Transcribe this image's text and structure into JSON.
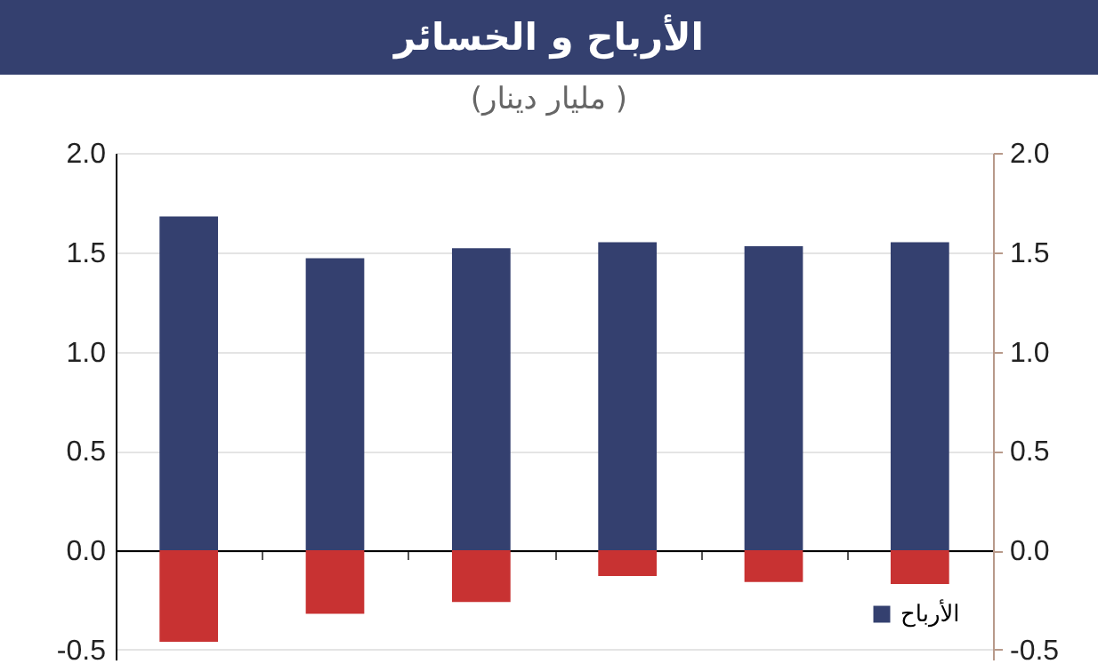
{
  "chart_data": {
    "type": "bar",
    "title": "الأرباح و الخسائر",
    "subtitle": "(مليار دينار )",
    "categories": [
      null,
      null,
      null,
      null,
      null,
      null
    ],
    "stacked": true,
    "series": [
      {
        "name": "الأرباح",
        "color": "#34406f",
        "values": [
          1.68,
          1.47,
          1.52,
          1.55,
          1.53,
          1.55
        ]
      },
      {
        "color": "#c83232",
        "values": [
          -0.46,
          -0.32,
          -0.26,
          -0.13,
          -0.16,
          -0.17
        ]
      }
    ],
    "ylim": [
      -0.55,
      2.0
    ],
    "yticks": [
      {
        "value": -0.5,
        "label": "-0.5"
      },
      {
        "value": 0,
        "label": "0.0"
      },
      {
        "value": 0.5,
        "label": "0.5"
      },
      {
        "value": 1,
        "label": "1.0"
      },
      {
        "value": 1.5,
        "label": "1.5"
      },
      {
        "value": 2,
        "label": "2.0"
      }
    ],
    "y2lim": [
      -0.55,
      2.0
    ],
    "y2ticks": [
      {
        "value": -0.5,
        "label": "-0.5"
      },
      {
        "value": 0,
        "label": "0.0"
      },
      {
        "value": 0.5,
        "label": "0.5"
      },
      {
        "value": 1,
        "label": "1.0"
      },
      {
        "value": 1.5,
        "label": "1.5"
      },
      {
        "value": 2,
        "label": "2.0"
      }
    ],
    "grid": "y",
    "legend": "bottom right"
  }
}
